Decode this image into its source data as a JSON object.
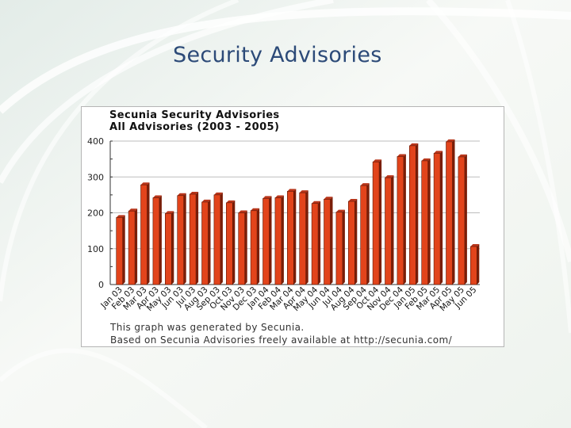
{
  "slide": {
    "title": "Security Advisories"
  },
  "colors": {
    "bar": "#e2441b",
    "bar_dark": "#7a1e08",
    "bar_top": "#b8351a",
    "title_text": "#2c4a78"
  },
  "chart_data": {
    "type": "bar",
    "title": "Secunia Security Advisories",
    "subtitle": "All Advisories (2003 - 2005)",
    "xlabel": "",
    "ylabel": "",
    "ylim": [
      0,
      400
    ],
    "yticks": [
      "400",
      "300",
      "200",
      "100",
      "0"
    ],
    "grid": true,
    "categories": [
      "Jan 03",
      "Feb 03",
      "Mar 03",
      "Apr 03",
      "May 03",
      "Jun 03",
      "Jul 03",
      "Aug 03",
      "Sep 03",
      "Oct 03",
      "Nov 03",
      "Dec 03",
      "Jan 04",
      "Feb 04",
      "Mar 04",
      "Apr 04",
      "May 04",
      "Jun 04",
      "Jul 04",
      "Aug 04",
      "Sep 04",
      "Oct 04",
      "Nov 04",
      "Dec 04",
      "Jan 05",
      "Feb 05",
      "Mar 05",
      "Apr 05",
      "May 05",
      "Jun 05"
    ],
    "values": [
      187,
      205,
      278,
      242,
      198,
      248,
      252,
      230,
      250,
      228,
      200,
      206,
      240,
      242,
      260,
      256,
      226,
      238,
      202,
      232,
      276,
      342,
      298,
      357,
      387,
      345,
      366,
      398,
      356,
      106
    ],
    "notes": [
      "This graph was generated by Secunia.",
      "Based on Secunia Advisories freely available at http://secunia.com/"
    ]
  }
}
